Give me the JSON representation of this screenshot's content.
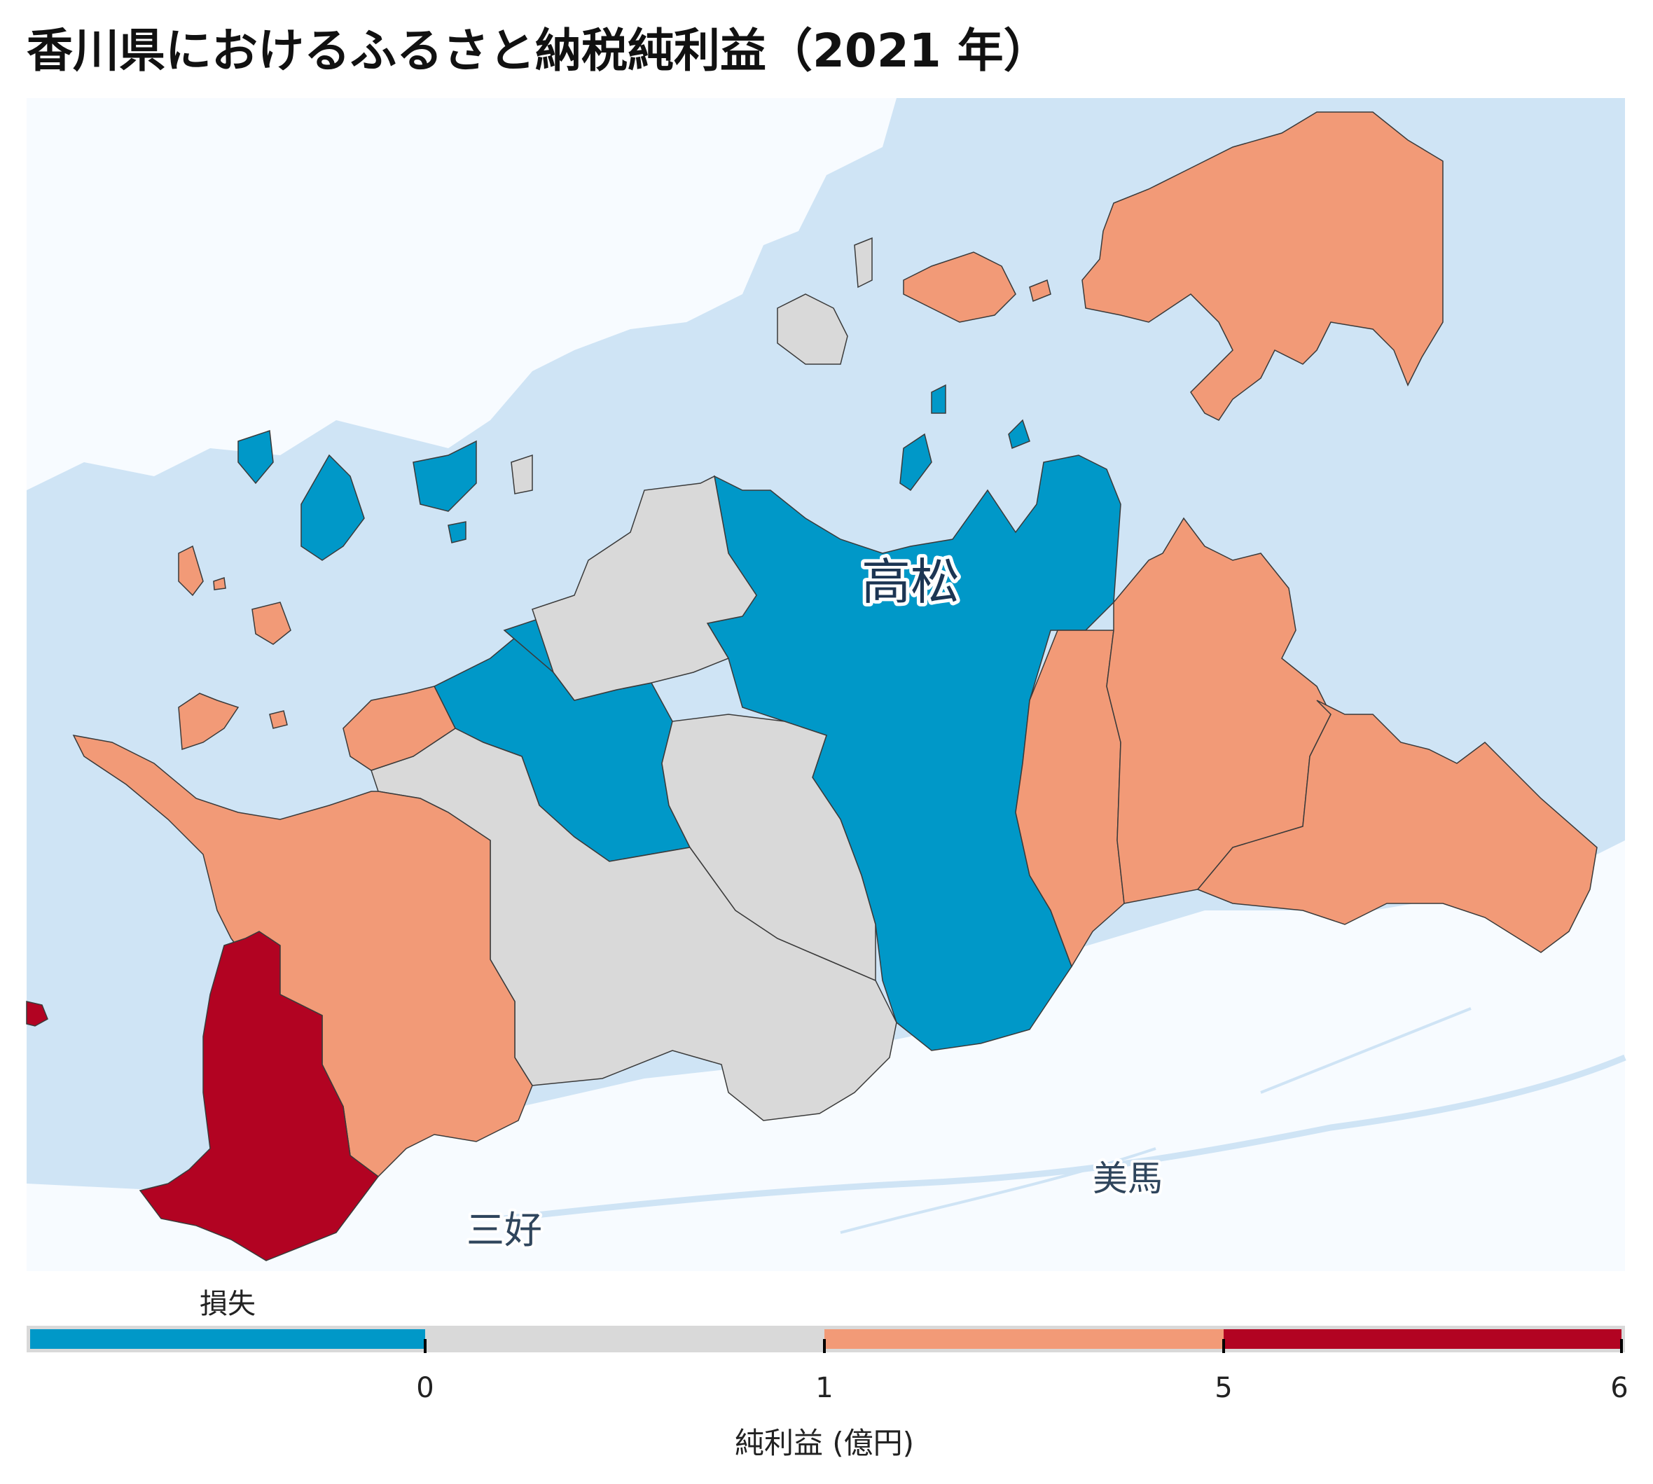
{
  "title": "香川県におけるふるさと納税純利益（2021 年）",
  "place_labels": {
    "takamatsu": "高松",
    "mima": "美馬",
    "miyoshi": "三好"
  },
  "colors": {
    "sea": "#cfe4f5",
    "outside_land": "#f7fbff",
    "loss": "#0098c8",
    "zero_to_one": "#d9d9d9",
    "one_to_five": "#f29a77",
    "five_to_six": "#b20322",
    "border": "#3a3a3a"
  },
  "legend": {
    "loss_label": "損失",
    "ticks": [
      "0",
      "1",
      "5",
      "6"
    ],
    "axis_label": "純利益 (億円)",
    "bins": [
      {
        "range": "< 0",
        "color": "#0098c8"
      },
      {
        "range": "0–1",
        "color": "#d9d9d9"
      },
      {
        "range": "1–5",
        "color": "#f29a77"
      },
      {
        "range": "5–6",
        "color": "#b20322"
      }
    ]
  }
}
